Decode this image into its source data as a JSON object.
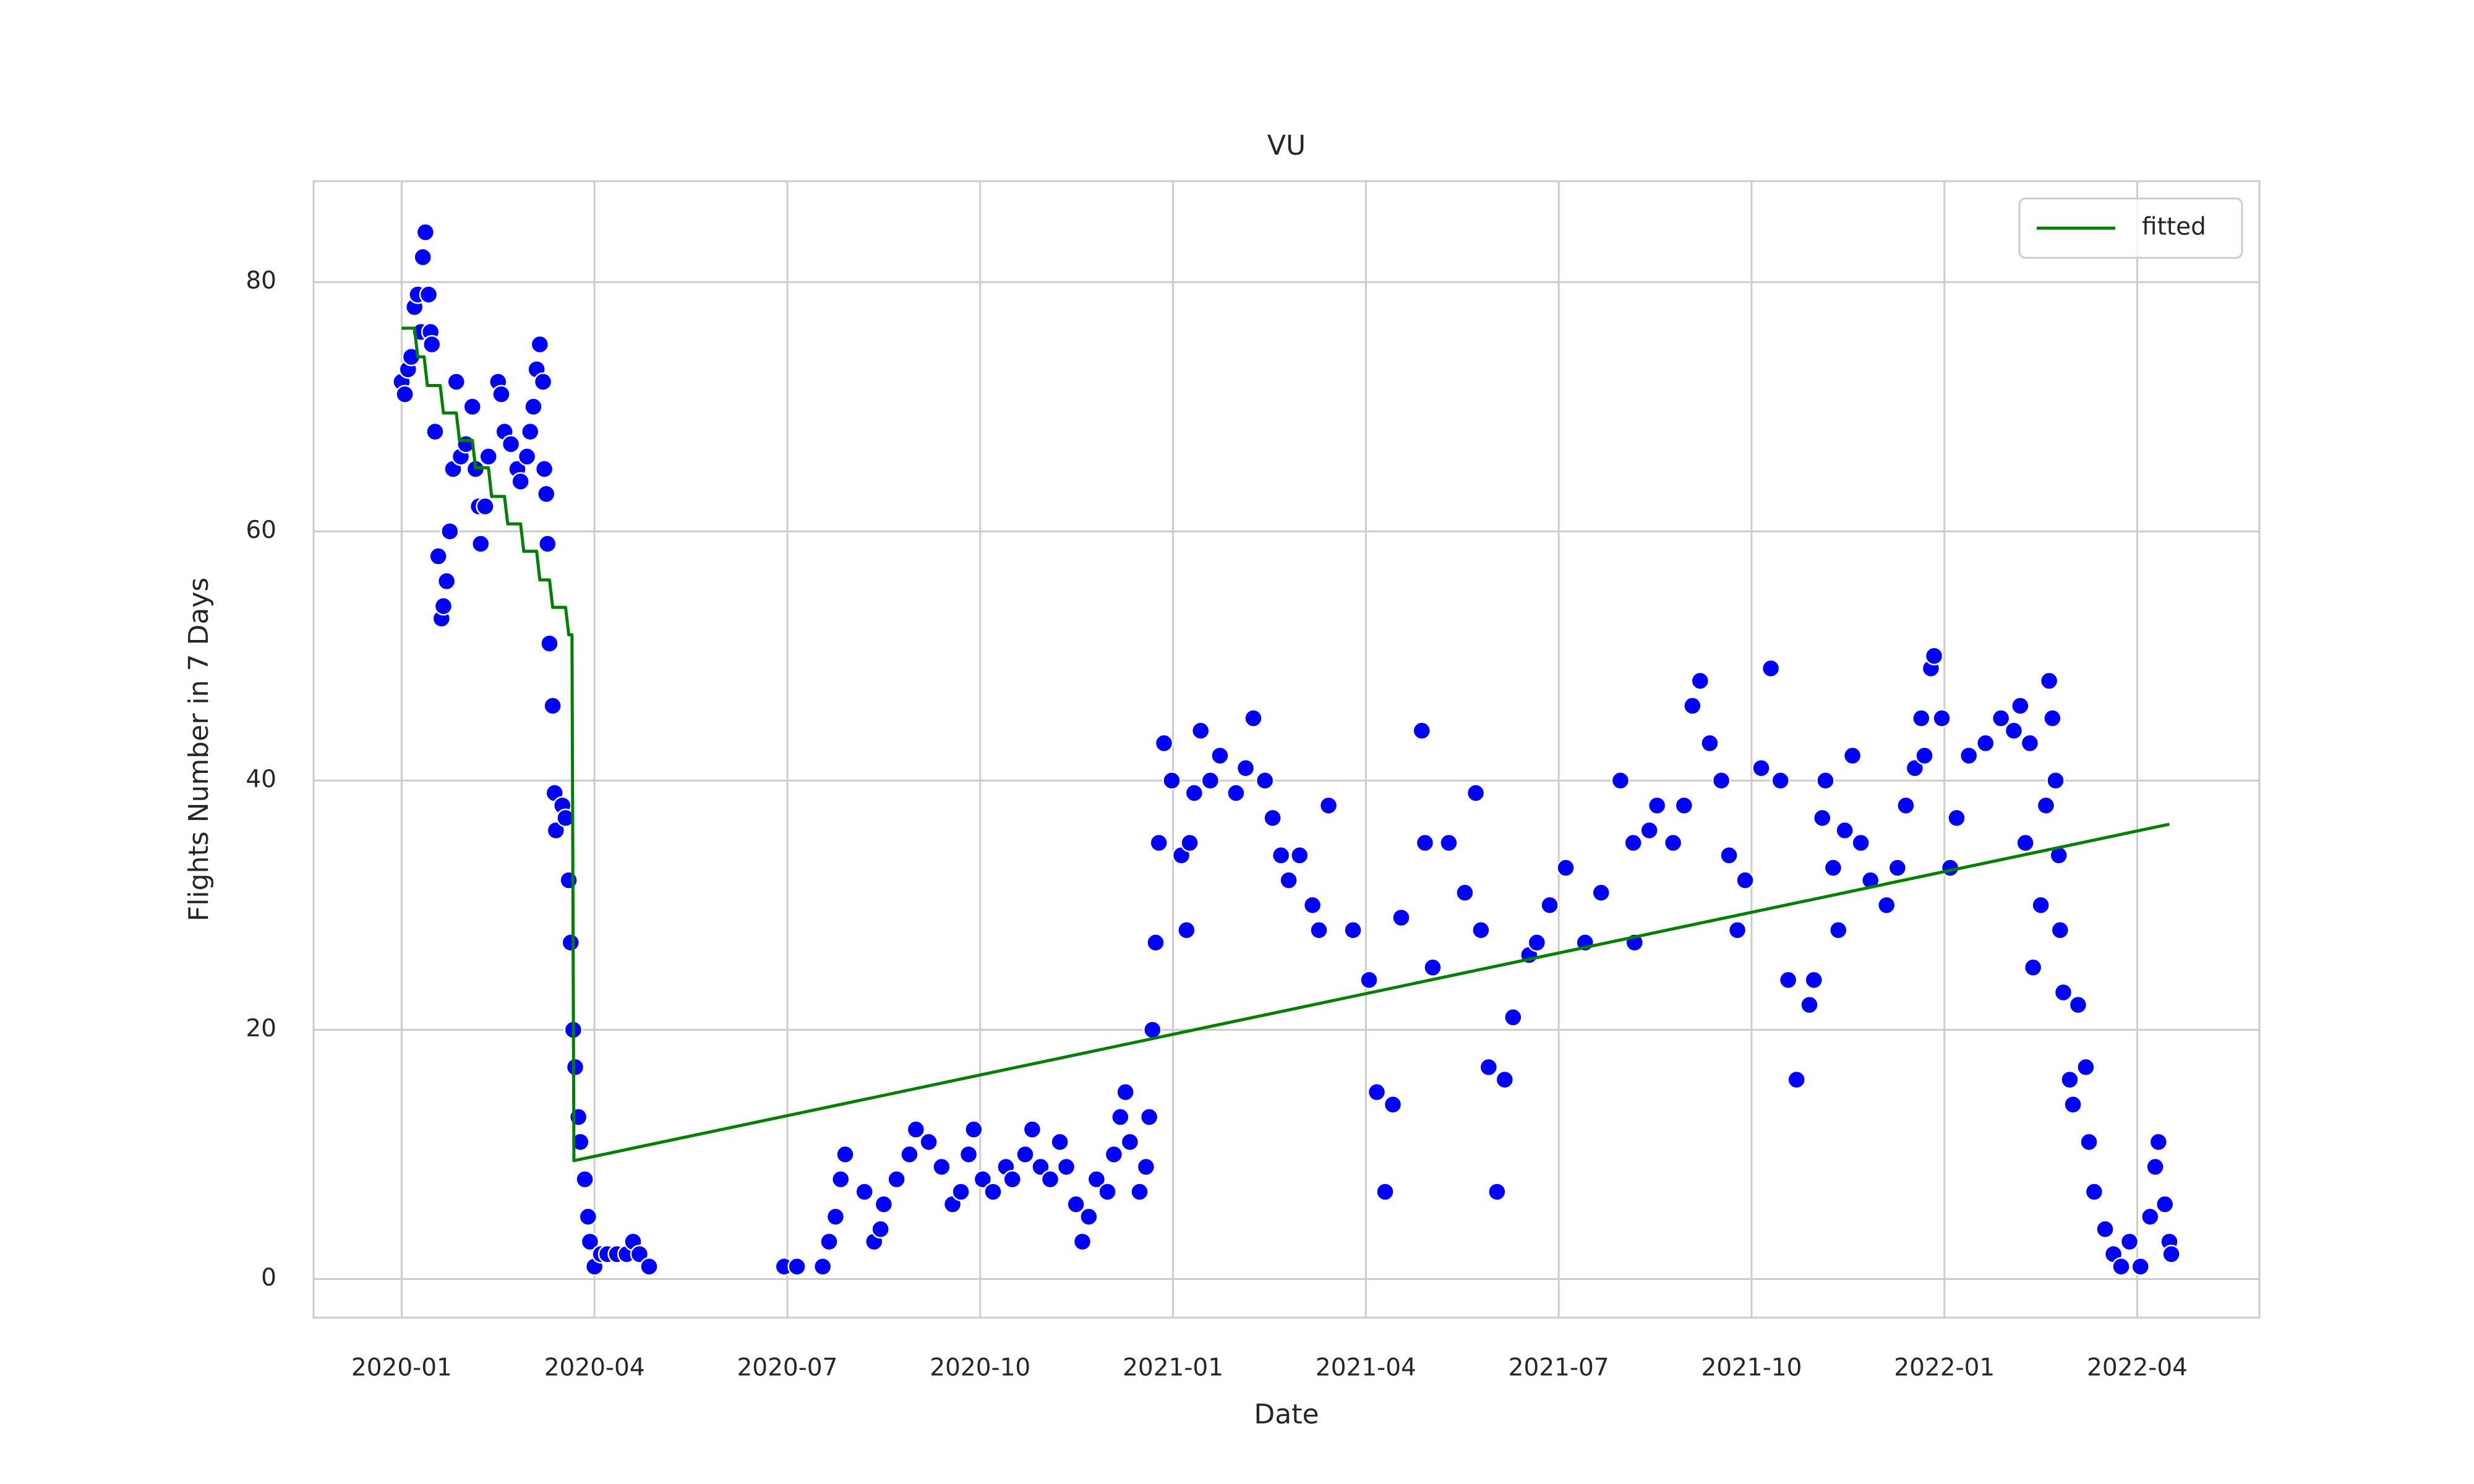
{
  "chart_data": {
    "type": "scatter",
    "title": "VU",
    "x_label": "Date",
    "y_label": "Flights Number in 7 Days",
    "xlim": [
      -1.37,
      28.9
    ],
    "ylim": [
      -3.1,
      88.1
    ],
    "xticks": [
      {
        "value": 0,
        "label": "2020-01"
      },
      {
        "value": 3,
        "label": "2020-04"
      },
      {
        "value": 6,
        "label": "2020-07"
      },
      {
        "value": 9,
        "label": "2020-10"
      },
      {
        "value": 12,
        "label": "2021-01"
      },
      {
        "value": 15,
        "label": "2021-04"
      },
      {
        "value": 18,
        "label": "2021-07"
      },
      {
        "value": 21,
        "label": "2021-10"
      },
      {
        "value": 24,
        "label": "2022-01"
      },
      {
        "value": 27,
        "label": "2022-04"
      }
    ],
    "yticks": [
      0,
      20,
      40,
      60,
      80
    ],
    "grid": true,
    "legend": "upper right",
    "series": [
      {
        "type": "scatter",
        "color": "#0000ff",
        "x": [
          0.0,
          0.05,
          0.1,
          0.15,
          0.2,
          0.25,
          0.3,
          0.33,
          0.37,
          0.42,
          0.45,
          0.47,
          0.52,
          0.57,
          0.62,
          0.65,
          0.7,
          0.75,
          0.8,
          0.85,
          0.92,
          1.0,
          1.1,
          1.15,
          1.2,
          1.23,
          1.3,
          1.35,
          1.5,
          1.55,
          1.6,
          1.7,
          1.8,
          1.85,
          1.95,
          2.0,
          2.05,
          2.1,
          2.15,
          2.2,
          2.22,
          2.25,
          2.27,
          2.3,
          2.35,
          2.38,
          2.4,
          2.5,
          2.55,
          2.6,
          2.63,
          2.67,
          2.7,
          2.75,
          2.78,
          2.85,
          2.9,
          2.93,
          3.0,
          3.1,
          3.2,
          3.35,
          3.5,
          3.6,
          3.7,
          3.85,
          5.95,
          6.15,
          6.55,
          6.65,
          6.75,
          6.83,
          6.9,
          7.2,
          7.35,
          7.45,
          7.5,
          7.7,
          7.9,
          8.0,
          8.2,
          8.4,
          8.57,
          8.7,
          8.82,
          8.9,
          9.04,
          9.2,
          9.4,
          9.5,
          9.7,
          9.81,
          9.94,
          10.09,
          10.24,
          10.34,
          10.49,
          10.59,
          10.69,
          10.81,
          10.98,
          11.08,
          11.18,
          11.26,
          11.33,
          11.48,
          11.58,
          11.63,
          11.68,
          11.73,
          11.78,
          11.86,
          11.98,
          12.13,
          12.21,
          12.26,
          12.33,
          12.43,
          12.58,
          12.73,
          12.98,
          13.13,
          13.25,
          13.43,
          13.55,
          13.68,
          13.8,
          13.97,
          14.17,
          14.27,
          14.42,
          14.8,
          15.05,
          15.17,
          15.3,
          15.42,
          15.55,
          15.87,
          15.92,
          16.04,
          16.29,
          16.54,
          16.71,
          16.79,
          16.91,
          17.04,
          17.16,
          17.29,
          17.54,
          17.66,
          17.86,
          18.11,
          18.41,
          18.66,
          18.96,
          19.16,
          19.18,
          19.41,
          19.53,
          19.78,
          19.95,
          20.08,
          20.2,
          20.35,
          20.53,
          20.65,
          20.78,
          20.9,
          21.15,
          21.3,
          21.45,
          21.57,
          21.7,
          21.9,
          21.97,
          22.1,
          22.15,
          22.27,
          22.35,
          22.45,
          22.57,
          22.7,
          22.85,
          23.1,
          23.27,
          23.4,
          23.54,
          23.64,
          23.69,
          23.79,
          23.84,
          23.96,
          24.09,
          24.19,
          24.38,
          24.64,
          24.88,
          25.08,
          25.18,
          25.26,
          25.33,
          25.38,
          25.5,
          25.58,
          25.63,
          25.68,
          25.73,
          25.78,
          25.8,
          25.85,
          25.95,
          26.0,
          26.08,
          26.2,
          26.25,
          26.33,
          26.5,
          26.63,
          26.75,
          26.88,
          27.05,
          27.2,
          27.28,
          27.33,
          27.43,
          27.5,
          27.53
        ],
        "values": [
          72,
          71,
          73,
          74,
          78,
          79,
          76,
          82,
          84,
          79,
          76,
          75,
          68,
          58,
          53,
          54,
          56,
          60,
          65,
          72,
          66,
          67,
          70,
          65,
          62,
          59,
          62,
          66,
          72,
          71,
          68,
          67,
          65,
          64,
          66,
          68,
          70,
          73,
          75,
          72,
          65,
          63,
          59,
          51,
          46,
          39,
          36,
          38,
          37,
          32,
          27,
          20,
          17,
          13,
          11,
          8,
          5,
          3,
          1,
          2,
          2,
          2,
          2,
          3,
          2,
          1,
          1,
          1,
          1,
          3,
          5,
          8,
          10,
          7,
          3,
          4,
          6,
          8,
          10,
          12,
          11,
          9,
          6,
          7,
          10,
          12,
          8,
          7,
          9,
          8,
          10,
          12,
          9,
          8,
          11,
          9,
          6,
          3,
          5,
          8,
          7,
          10,
          13,
          15,
          11,
          7,
          9,
          13,
          20,
          27,
          35,
          43,
          40,
          34,
          28,
          35,
          39,
          44,
          40,
          42,
          39,
          41,
          45,
          40,
          37,
          34,
          32,
          34,
          30,
          28,
          38,
          28,
          24,
          15,
          7,
          14,
          29,
          44,
          35,
          25,
          35,
          31,
          39,
          28,
          17,
          7,
          16,
          21,
          26,
          27,
          30,
          33,
          27,
          31,
          40,
          35,
          27,
          36,
          38,
          35,
          38,
          46,
          48,
          43,
          40,
          34,
          28,
          32,
          41,
          49,
          40,
          24,
          16,
          22,
          24,
          37,
          40,
          33,
          28,
          36,
          42,
          35,
          32,
          30,
          33,
          38,
          41,
          45,
          42,
          49,
          50,
          45,
          33,
          37,
          42,
          43,
          45,
          44,
          46,
          35,
          43,
          25,
          30,
          38,
          48,
          45,
          40,
          34,
          28,
          23,
          16,
          14,
          22,
          17,
          11,
          7,
          4,
          2,
          1,
          3,
          1,
          5,
          9,
          11,
          6,
          3,
          2
        ]
      },
      {
        "type": "line",
        "name": "fitted",
        "color": "#008000",
        "x": [
          0,
          0.2,
          0.25,
          0.35,
          0.4,
          0.6,
          0.65,
          0.85,
          0.9,
          1.1,
          1.15,
          1.35,
          1.4,
          1.6,
          1.65,
          1.85,
          1.9,
          2.1,
          2.15,
          2.3,
          2.35,
          2.55,
          2.6,
          2.65,
          2.68,
          27.5
        ],
        "values": [
          76.3,
          76.3,
          74,
          74,
          71.7,
          71.7,
          69.5,
          69.5,
          67.3,
          67.3,
          65.1,
          65.1,
          62.8,
          62.8,
          60.6,
          60.6,
          58.4,
          58.4,
          56.1,
          56.1,
          53.9,
          53.9,
          51.7,
          51.7,
          9.5,
          36.5
        ]
      }
    ]
  }
}
